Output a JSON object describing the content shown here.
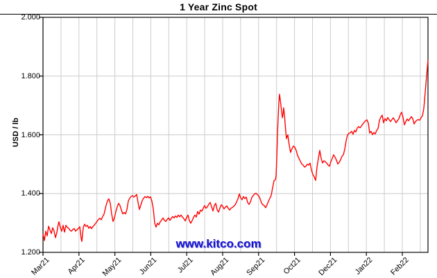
{
  "title": "1 Year Zinc Spot",
  "watermark": {
    "text": "www.kitco.com"
  },
  "colors": {
    "line": "#ff0000",
    "grid": "#cccccc",
    "axis": "#000000",
    "watermark_blue": "#1512cf",
    "text": "#000000"
  },
  "chart_data": {
    "type": "line",
    "title": "1 Year Zinc Spot",
    "ylabel": "USD / lb",
    "xlabel": "",
    "ylim": [
      1.2,
      2.0
    ],
    "y_tick_values": [
      2.0,
      1.8,
      1.6,
      1.4,
      1.2
    ],
    "y_tick_labels": [
      "2.000",
      "1.800",
      "1.600",
      "1.400",
      "1.200"
    ],
    "x_tick_labels": [
      "Mar21",
      "Apr21",
      "May21",
      "Jun21",
      "Jul21",
      "Aug21",
      "Sep21",
      "Oct21",
      "Dec21",
      "Jan22",
      "Feb22"
    ],
    "x_note": "x = horizontal chart position in px, spanning Mar 2021 to early Mar 2022; source chart omits a Nov21 label",
    "grid": true,
    "legend": "none",
    "series": [
      {
        "name": "Zinc spot price (USD/lb)",
        "color": "#ff0000",
        "points": [
          [
            62,
            1.262
          ],
          [
            63,
            1.252
          ],
          [
            64,
            1.24
          ],
          [
            66,
            1.272
          ],
          [
            68,
            1.256
          ],
          [
            70,
            1.289
          ],
          [
            72,
            1.276
          ],
          [
            74,
            1.264
          ],
          [
            76,
            1.284
          ],
          [
            78,
            1.272
          ],
          [
            80,
            1.25
          ],
          [
            82,
            1.268
          ],
          [
            84,
            1.296
          ],
          [
            85,
            1.304
          ],
          [
            87,
            1.284
          ],
          [
            89,
            1.272
          ],
          [
            91,
            1.292
          ],
          [
            93,
            1.269
          ],
          [
            95,
            1.292
          ],
          [
            97,
            1.285
          ],
          [
            99,
            1.282
          ],
          [
            101,
            1.275
          ],
          [
            103,
            1.272
          ],
          [
            105,
            1.278
          ],
          [
            107,
            1.281
          ],
          [
            109,
            1.272
          ],
          [
            111,
            1.277
          ],
          [
            113,
            1.282
          ],
          [
            115,
            1.287
          ],
          [
            117,
            1.248
          ],
          [
            118,
            1.237
          ],
          [
            120,
            1.284
          ],
          [
            122,
            1.296
          ],
          [
            124,
            1.288
          ],
          [
            126,
            1.292
          ],
          [
            128,
            1.282
          ],
          [
            130,
            1.288
          ],
          [
            132,
            1.281
          ],
          [
            134,
            1.288
          ],
          [
            136,
            1.293
          ],
          [
            138,
            1.299
          ],
          [
            140,
            1.306
          ],
          [
            142,
            1.312
          ],
          [
            144,
            1.316
          ],
          [
            146,
            1.311
          ],
          [
            148,
            1.322
          ],
          [
            150,
            1.33
          ],
          [
            152,
            1.351
          ],
          [
            154,
            1.368
          ],
          [
            156,
            1.38
          ],
          [
            157,
            1.382
          ],
          [
            159,
            1.367
          ],
          [
            161,
            1.33
          ],
          [
            163,
            1.305
          ],
          [
            165,
            1.318
          ],
          [
            167,
            1.338
          ],
          [
            169,
            1.355
          ],
          [
            171,
            1.367
          ],
          [
            173,
            1.359
          ],
          [
            175,
            1.344
          ],
          [
            177,
            1.331
          ],
          [
            179,
            1.336
          ],
          [
            181,
            1.331
          ],
          [
            183,
            1.346
          ],
          [
            185,
            1.375
          ],
          [
            187,
            1.384
          ],
          [
            189,
            1.39
          ],
          [
            191,
            1.393
          ],
          [
            193,
            1.388
          ],
          [
            195,
            1.392
          ],
          [
            197,
            1.397
          ],
          [
            199,
            1.37
          ],
          [
            201,
            1.346
          ],
          [
            203,
            1.361
          ],
          [
            205,
            1.376
          ],
          [
            207,
            1.384
          ],
          [
            209,
            1.39
          ],
          [
            211,
            1.386
          ],
          [
            213,
            1.391
          ],
          [
            215,
            1.385
          ],
          [
            217,
            1.389
          ],
          [
            219,
            1.374
          ],
          [
            221,
            1.348
          ],
          [
            223,
            1.3
          ],
          [
            225,
            1.286
          ],
          [
            227,
            1.299
          ],
          [
            229,
            1.294
          ],
          [
            231,
            1.304
          ],
          [
            233,
            1.31
          ],
          [
            235,
            1.317
          ],
          [
            237,
            1.309
          ],
          [
            239,
            1.305
          ],
          [
            241,
            1.312
          ],
          [
            243,
            1.317
          ],
          [
            245,
            1.309
          ],
          [
            247,
            1.316
          ],
          [
            249,
            1.322
          ],
          [
            251,
            1.317
          ],
          [
            253,
            1.324
          ],
          [
            255,
            1.319
          ],
          [
            257,
            1.327
          ],
          [
            259,
            1.321
          ],
          [
            261,
            1.327
          ],
          [
            263,
            1.32
          ],
          [
            265,
            1.315
          ],
          [
            267,
            1.307
          ],
          [
            269,
            1.319
          ],
          [
            271,
            1.327
          ],
          [
            273,
            1.308
          ],
          [
            275,
            1.299
          ],
          [
            277,
            1.308
          ],
          [
            279,
            1.319
          ],
          [
            281,
            1.327
          ],
          [
            283,
            1.32
          ],
          [
            285,
            1.339
          ],
          [
            287,
            1.33
          ],
          [
            289,
            1.344
          ],
          [
            291,
            1.34
          ],
          [
            293,
            1.35
          ],
          [
            295,
            1.359
          ],
          [
            297,
            1.35
          ],
          [
            299,
            1.355
          ],
          [
            301,
            1.364
          ],
          [
            303,
            1.37
          ],
          [
            305,
            1.355
          ],
          [
            307,
            1.341
          ],
          [
            309,
            1.359
          ],
          [
            311,
            1.367
          ],
          [
            313,
            1.345
          ],
          [
            315,
            1.337
          ],
          [
            317,
            1.35
          ],
          [
            319,
            1.362
          ],
          [
            321,
            1.357
          ],
          [
            323,
            1.348
          ],
          [
            325,
            1.354
          ],
          [
            327,
            1.358
          ],
          [
            329,
            1.35
          ],
          [
            331,
            1.344
          ],
          [
            333,
            1.35
          ],
          [
            335,
            1.353
          ],
          [
            337,
            1.357
          ],
          [
            339,
            1.362
          ],
          [
            341,
            1.371
          ],
          [
            343,
            1.382
          ],
          [
            345,
            1.399
          ],
          [
            347,
            1.385
          ],
          [
            349,
            1.379
          ],
          [
            351,
            1.39
          ],
          [
            353,
            1.383
          ],
          [
            355,
            1.388
          ],
          [
            357,
            1.37
          ],
          [
            359,
            1.363
          ],
          [
            361,
            1.371
          ],
          [
            363,
            1.387
          ],
          [
            365,
            1.393
          ],
          [
            367,
            1.399
          ],
          [
            369,
            1.401
          ],
          [
            371,
            1.397
          ],
          [
            373,
            1.392
          ],
          [
            375,
            1.382
          ],
          [
            377,
            1.368
          ],
          [
            379,
            1.362
          ],
          [
            381,
            1.359
          ],
          [
            383,
            1.352
          ],
          [
            385,
            1.362
          ],
          [
            387,
            1.374
          ],
          [
            389,
            1.384
          ],
          [
            391,
            1.394
          ],
          [
            393,
            1.42
          ],
          [
            395,
            1.444
          ],
          [
            397,
            1.447
          ],
          [
            398,
            1.46
          ],
          [
            399,
            1.52
          ],
          [
            400,
            1.6
          ],
          [
            401,
            1.66
          ],
          [
            402,
            1.71
          ],
          [
            403,
            1.738
          ],
          [
            404,
            1.72
          ],
          [
            405,
            1.7
          ],
          [
            406,
            1.68
          ],
          [
            407,
            1.658
          ],
          [
            408,
            1.67
          ],
          [
            409,
            1.692
          ],
          [
            410,
            1.67
          ],
          [
            411,
            1.64
          ],
          [
            412,
            1.61
          ],
          [
            413,
            1.587
          ],
          [
            414,
            1.595
          ],
          [
            415,
            1.6
          ],
          [
            416,
            1.58
          ],
          [
            417,
            1.565
          ],
          [
            418,
            1.551
          ],
          [
            419,
            1.54
          ],
          [
            420,
            1.548
          ],
          [
            421,
            1.553
          ],
          [
            423,
            1.562
          ],
          [
            425,
            1.558
          ],
          [
            427,
            1.547
          ],
          [
            429,
            1.53
          ],
          [
            431,
            1.52
          ],
          [
            433,
            1.51
          ],
          [
            435,
            1.501
          ],
          [
            437,
            1.497
          ],
          [
            439,
            1.49
          ],
          [
            441,
            1.493
          ],
          [
            443,
            1.5
          ],
          [
            445,
            1.497
          ],
          [
            447,
            1.504
          ],
          [
            449,
            1.48
          ],
          [
            451,
            1.465
          ],
          [
            453,
            1.457
          ],
          [
            455,
            1.445
          ],
          [
            457,
            1.49
          ],
          [
            459,
            1.52
          ],
          [
            461,
            1.547
          ],
          [
            463,
            1.52
          ],
          [
            465,
            1.504
          ],
          [
            467,
            1.512
          ],
          [
            469,
            1.508
          ],
          [
            471,
            1.504
          ],
          [
            473,
            1.497
          ],
          [
            475,
            1.493
          ],
          [
            477,
            1.509
          ],
          [
            479,
            1.52
          ],
          [
            481,
            1.532
          ],
          [
            483,
            1.524
          ],
          [
            485,
            1.514
          ],
          [
            487,
            1.501
          ],
          [
            489,
            1.506
          ],
          [
            491,
            1.515
          ],
          [
            493,
            1.527
          ],
          [
            495,
            1.532
          ],
          [
            497,
            1.551
          ],
          [
            499,
            1.58
          ],
          [
            501,
            1.6
          ],
          [
            503,
            1.605
          ],
          [
            505,
            1.607
          ],
          [
            507,
            1.612
          ],
          [
            509,
            1.602
          ],
          [
            511,
            1.615
          ],
          [
            513,
            1.61
          ],
          [
            515,
            1.623
          ],
          [
            517,
            1.628
          ],
          [
            519,
            1.624
          ],
          [
            521,
            1.63
          ],
          [
            523,
            1.637
          ],
          [
            525,
            1.643
          ],
          [
            527,
            1.648
          ],
          [
            529,
            1.651
          ],
          [
            531,
            1.64
          ],
          [
            533,
            1.606
          ],
          [
            535,
            1.612
          ],
          [
            537,
            1.601
          ],
          [
            539,
            1.608
          ],
          [
            541,
            1.603
          ],
          [
            543,
            1.615
          ],
          [
            545,
            1.621
          ],
          [
            547,
            1.649
          ],
          [
            549,
            1.66
          ],
          [
            551,
            1.667
          ],
          [
            553,
            1.641
          ],
          [
            555,
            1.655
          ],
          [
            557,
            1.648
          ],
          [
            559,
            1.659
          ],
          [
            561,
            1.652
          ],
          [
            563,
            1.645
          ],
          [
            565,
            1.652
          ],
          [
            567,
            1.658
          ],
          [
            569,
            1.65
          ],
          [
            571,
            1.641
          ],
          [
            573,
            1.648
          ],
          [
            575,
            1.655
          ],
          [
            577,
            1.668
          ],
          [
            579,
            1.677
          ],
          [
            581,
            1.66
          ],
          [
            583,
            1.634
          ],
          [
            585,
            1.645
          ],
          [
            587,
            1.654
          ],
          [
            589,
            1.648
          ],
          [
            591,
            1.655
          ],
          [
            593,
            1.662
          ],
          [
            595,
            1.655
          ],
          [
            597,
            1.637
          ],
          [
            599,
            1.645
          ],
          [
            601,
            1.65
          ],
          [
            603,
            1.652
          ],
          [
            605,
            1.65
          ],
          [
            607,
            1.658
          ],
          [
            609,
            1.665
          ],
          [
            611,
            1.69
          ],
          [
            613,
            1.745
          ],
          [
            615,
            1.8
          ],
          [
            616,
            1.828
          ],
          [
            617,
            1.854
          ]
        ]
      }
    ]
  }
}
